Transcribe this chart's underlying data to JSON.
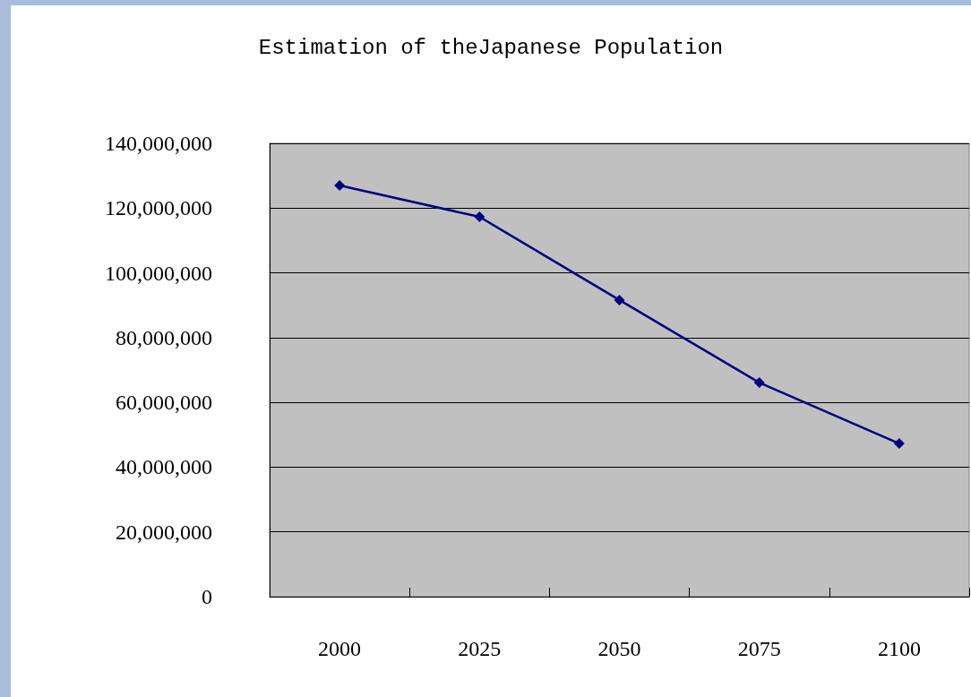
{
  "chart_data": {
    "type": "line",
    "title": "Estimation of theJapanese Population",
    "categories": [
      "2000",
      "2025",
      "2050",
      "2075",
      "2100"
    ],
    "series": [
      {
        "color": "#000080",
        "values": [
          127000000,
          117300000,
          91600000,
          66100000,
          47300000
        ]
      }
    ],
    "ylim": [
      0,
      140000000
    ],
    "yticks": [
      0,
      {
        "value": 20000000,
        "label": "20,000,000"
      },
      {
        "value": 40000000,
        "label": "40,000,000"
      },
      {
        "value": 60000000,
        "label": "60,000,000"
      },
      {
        "value": 80000000,
        "label": "80,000,000"
      },
      {
        "value": 100000000,
        "label": "100,000,000"
      },
      {
        "value": 120000000,
        "label": "120,000,000"
      },
      {
        "value": 140000000,
        "label": "140,000,000"
      }
    ],
    "grid": "y",
    "marker": "diamond",
    "line_style": "solid"
  }
}
